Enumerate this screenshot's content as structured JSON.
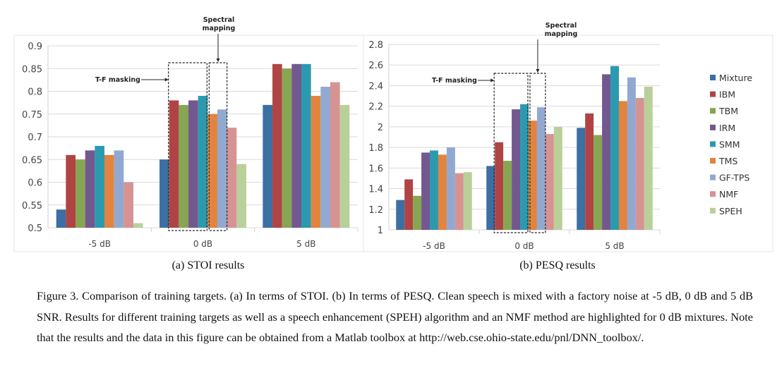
{
  "chart_data": [
    {
      "type": "bar",
      "title": "",
      "xlabel": "",
      "ylabel": "",
      "categories": [
        "-5 dB",
        "0 dB",
        "5 dB"
      ],
      "ylim": [
        0.5,
        0.9
      ],
      "yticks": [
        "0.5",
        "0.55",
        "0.6",
        "0.65",
        "0.7",
        "0.75",
        "0.8",
        "0.85",
        "0.9"
      ],
      "grid": true,
      "legend": "none",
      "series": [
        {
          "name": "Mixture",
          "values": [
            0.54,
            0.65,
            0.77
          ]
        },
        {
          "name": "IBM",
          "values": [
            0.66,
            0.78,
            0.86
          ]
        },
        {
          "name": "TBM",
          "values": [
            0.65,
            0.77,
            0.85
          ]
        },
        {
          "name": "IRM",
          "values": [
            0.67,
            0.78,
            0.86
          ]
        },
        {
          "name": "SMM",
          "values": [
            0.68,
            0.79,
            0.86
          ]
        },
        {
          "name": "TMS",
          "values": [
            0.66,
            0.75,
            0.79
          ]
        },
        {
          "name": "GF-TPS",
          "values": [
            0.67,
            0.76,
            0.81
          ]
        },
        {
          "name": "NMF",
          "values": [
            0.6,
            0.72,
            0.82
          ]
        },
        {
          "name": "SPEH",
          "values": [
            0.51,
            0.64,
            0.77
          ]
        }
      ],
      "annotations": {
        "tf": "T-F masking",
        "sm1": "Spectral",
        "sm2": "mapping"
      },
      "caption": "(a) STOI results"
    },
    {
      "type": "bar",
      "title": "",
      "xlabel": "",
      "ylabel": "",
      "categories": [
        "-5 dB",
        "0 dB",
        "5 dB"
      ],
      "ylim": [
        1,
        2.8
      ],
      "yticks": [
        "1",
        "1.2",
        "1.4",
        "1.6",
        "1.8",
        "2",
        "2.2",
        "2.4",
        "2.6",
        "2.8"
      ],
      "grid": true,
      "legend": "right",
      "series": [
        {
          "name": "Mixture",
          "values": [
            1.29,
            1.62,
            1.99
          ]
        },
        {
          "name": "IBM",
          "values": [
            1.49,
            1.85,
            2.13
          ]
        },
        {
          "name": "TBM",
          "values": [
            1.33,
            1.67,
            1.92
          ]
        },
        {
          "name": "IRM",
          "values": [
            1.75,
            2.17,
            2.51
          ]
        },
        {
          "name": "SMM",
          "values": [
            1.77,
            2.22,
            2.59
          ]
        },
        {
          "name": "TMS",
          "values": [
            1.73,
            2.06,
            2.25
          ]
        },
        {
          "name": "GF-TPS",
          "values": [
            1.8,
            2.19,
            2.48
          ]
        },
        {
          "name": "NMF",
          "values": [
            1.55,
            1.93,
            2.28
          ]
        },
        {
          "name": "SPEH",
          "values": [
            1.56,
            2.0,
            2.39
          ]
        }
      ],
      "annotations": {
        "tf": "T-F masking",
        "sm1": "Spectral",
        "sm2": "mapping"
      },
      "caption": "(b) PESQ results"
    }
  ],
  "colors": [
    "#3c6fa3",
    "#b04444",
    "#87a652",
    "#735890",
    "#2c9aae",
    "#e2843f",
    "#91a9d1",
    "#d79292",
    "#b9d09a"
  ],
  "figure_caption": "Figure 3. Comparison of training targets. (a) In terms of STOI. (b) In terms of PESQ. Clean speech is mixed with a factory noise at -5 dB, 0 dB and 5 dB SNR. Results for different training targets as well as a speech enhancement (SPEH) algorithm and an NMF method are highlighted for 0 dB mixtures. Note that the results and the data in this figure can be obtained from a Matlab toolbox at http://web.cse.ohio-state.edu/pnl/DNN_toolbox/."
}
